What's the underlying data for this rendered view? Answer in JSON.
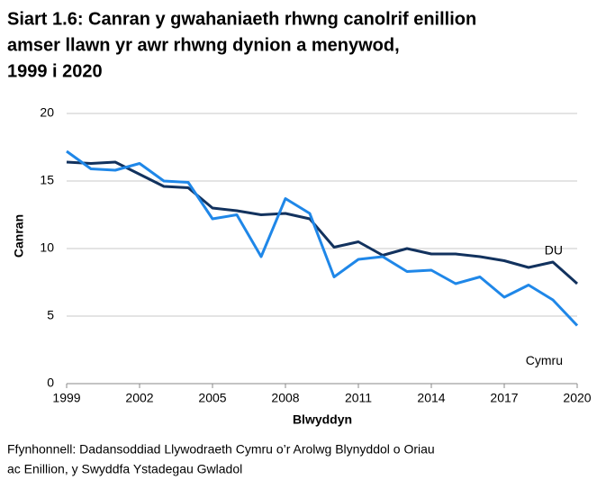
{
  "chart_data": {
    "type": "line",
    "title": [
      "Siart 1.6: Canran y gwahaniaeth rhwng canolrif enillion",
      "amser llawn yr awr rhwng dynion a menywod,",
      "1999 i 2020"
    ],
    "x_label": "Blwyddyn",
    "y_label": "Canran",
    "source": [
      "Ffynhonnell: Dadansoddiad Llywodraeth Cymru o’r Arolwg Blynyddol o Oriau",
      "ac Enillion, y Swyddfa Ystadegau Gwladol"
    ],
    "x": [
      1999,
      2000,
      2001,
      2002,
      2003,
      2004,
      2005,
      2006,
      2007,
      2008,
      2009,
      2010,
      2011,
      2012,
      2013,
      2014,
      2015,
      2016,
      2017,
      2018,
      2019,
      2020
    ],
    "series": [
      {
        "name": "DU",
        "color": "#12325e",
        "values": [
          16.4,
          16.3,
          16.4,
          15.5,
          14.6,
          14.5,
          13.0,
          12.8,
          12.5,
          12.6,
          12.2,
          10.1,
          10.5,
          9.5,
          10.0,
          9.6,
          9.6,
          9.4,
          9.1,
          8.6,
          9.0,
          7.4
        ]
      },
      {
        "name": "Cymru",
        "color": "#1f87e8",
        "values": [
          17.2,
          15.9,
          15.8,
          16.3,
          15.0,
          14.9,
          12.2,
          12.5,
          9.4,
          13.7,
          12.6,
          7.9,
          9.2,
          9.4,
          8.3,
          8.4,
          7.4,
          7.9,
          6.4,
          7.3,
          6.2,
          4.3
        ]
      }
    ],
    "xlim": [
      1999,
      2020
    ],
    "xticks": [
      1999,
      2002,
      2005,
      2008,
      2011,
      2014,
      2017,
      2020
    ],
    "ylim": [
      0,
      20
    ],
    "yticks": [
      0,
      5,
      10,
      15,
      20
    ],
    "grid": true
  }
}
